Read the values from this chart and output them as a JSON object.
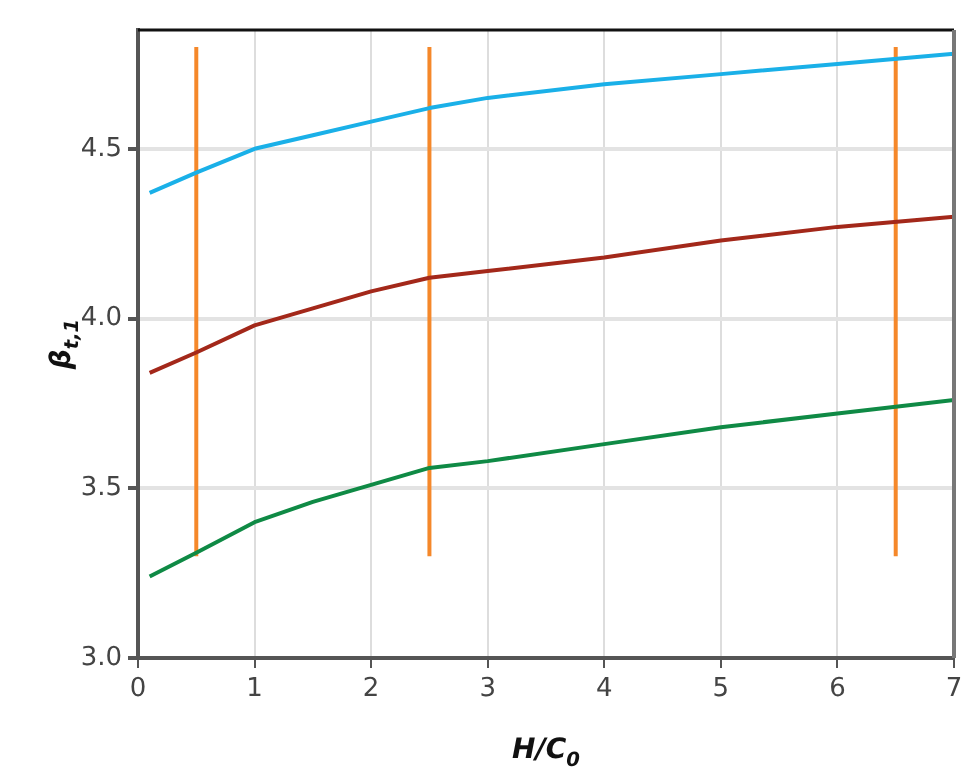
{
  "chart_data": {
    "type": "line",
    "xlabel": "H/C$_{0}$",
    "ylabel": "β$_{t,1}$",
    "xlim": [
      0,
      7
    ],
    "xticks": [
      0,
      1,
      2,
      3,
      4,
      5,
      6,
      7
    ],
    "ylim": [
      3.0,
      4.85
    ],
    "yticks": [
      {
        "value": 3.0,
        "label": "3.0"
      },
      {
        "value": 3.5,
        "label": "3.5"
      },
      {
        "value": 4.0,
        "label": "4.0"
      },
      {
        "value": 4.5,
        "label": "4.5"
      }
    ],
    "grid": true,
    "legend": false,
    "marker": "none",
    "line_style": "solid",
    "series": [
      {
        "color": "#1ab0e8",
        "x": [
          0.1,
          0.5,
          1,
          1.5,
          2,
          2.5,
          3,
          4,
          5,
          6,
          7
        ],
        "values": [
          4.37,
          4.43,
          4.5,
          4.54,
          4.58,
          4.62,
          4.65,
          4.69,
          4.72,
          4.75,
          4.78
        ]
      },
      {
        "color": "#a3281a",
        "x": [
          0.1,
          0.5,
          1,
          1.5,
          2,
          2.5,
          3,
          4,
          5,
          6,
          7
        ],
        "values": [
          3.84,
          3.9,
          3.98,
          4.03,
          4.08,
          4.12,
          4.14,
          4.18,
          4.23,
          4.27,
          4.3
        ]
      },
      {
        "color": "#0f8a45",
        "x": [
          0.1,
          0.5,
          1,
          1.5,
          2,
          2.5,
          3,
          4,
          5,
          6,
          7
        ],
        "values": [
          3.24,
          3.31,
          3.4,
          3.46,
          3.51,
          3.56,
          3.58,
          3.63,
          3.68,
          3.72,
          3.76
        ]
      },
      {
        "color": "#f5882a",
        "x": [
          0.5,
          0.5
        ],
        "values": [
          3.3,
          4.8
        ]
      },
      {
        "color": "#f5882a",
        "x": [
          2.5,
          2.5
        ],
        "values": [
          3.3,
          4.8
        ]
      },
      {
        "color": "#f5882a",
        "x": [
          6.5,
          6.5
        ],
        "values": [
          3.3,
          4.8
        ]
      }
    ]
  }
}
